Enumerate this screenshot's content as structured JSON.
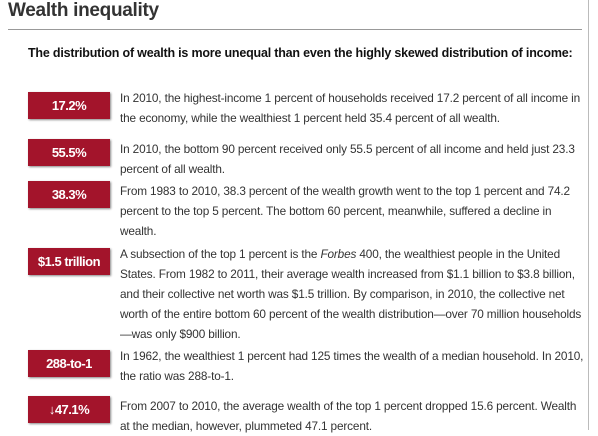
{
  "header": {
    "title": "Wealth inequality",
    "subtitle": "The distribution of wealth is more unequal than even the highly skewed distribution of income:"
  },
  "items": [
    {
      "badge": "17.2%",
      "text": [
        {
          "text": "In 2010, the highest-income 1 percent of households received 17.2 percent of all income in the economy, while the wealthiest 1 percent held 35.4 percent of all wealth."
        }
      ]
    },
    {
      "badge": "55.5%",
      "text": [
        {
          "text": "In 2010, the bottom 90 percent received only 55.5 percent of all income and held just 23.3 percent of all wealth."
        }
      ]
    },
    {
      "badge": "38.3%",
      "text": [
        {
          "text": "From 1983 to 2010, 38.3 percent of the wealth growth went to the top 1 percent and 74.2 percent to the top 5 percent. The bottom 60 percent, meanwhile, suffered a decline in wealth."
        }
      ]
    },
    {
      "badge": "$1.5 trillion",
      "text": [
        {
          "text": "A subsection of the top 1 percent is the "
        },
        {
          "text": "Forbes",
          "italic": true
        },
        {
          "text": " 400, the wealthiest people in the United States. From 1982 to 2011, their average wealth increased from $1.1 billion to $3.8 billion, and their collective net worth was $1.5 trillion. By comparison, in 2010, the collective net worth of the entire bottom 60 percent of the wealth distribution—over 70 million households—was only $900 billion."
        }
      ]
    },
    {
      "badge": "288-to-1",
      "text": [
        {
          "text": "In 1962, the wealthiest 1 percent had 125 times the wealth of a median household. In 2010, the ratio was 288-to-1."
        }
      ]
    },
    {
      "badge": "↓47.1%",
      "text": [
        {
          "text": "From 2007 to 2010, the average wealth of the top 1 percent dropped 15.6 percent. Wealth at the median, however, plummeted 47.1 percent."
        }
      ]
    }
  ]
}
